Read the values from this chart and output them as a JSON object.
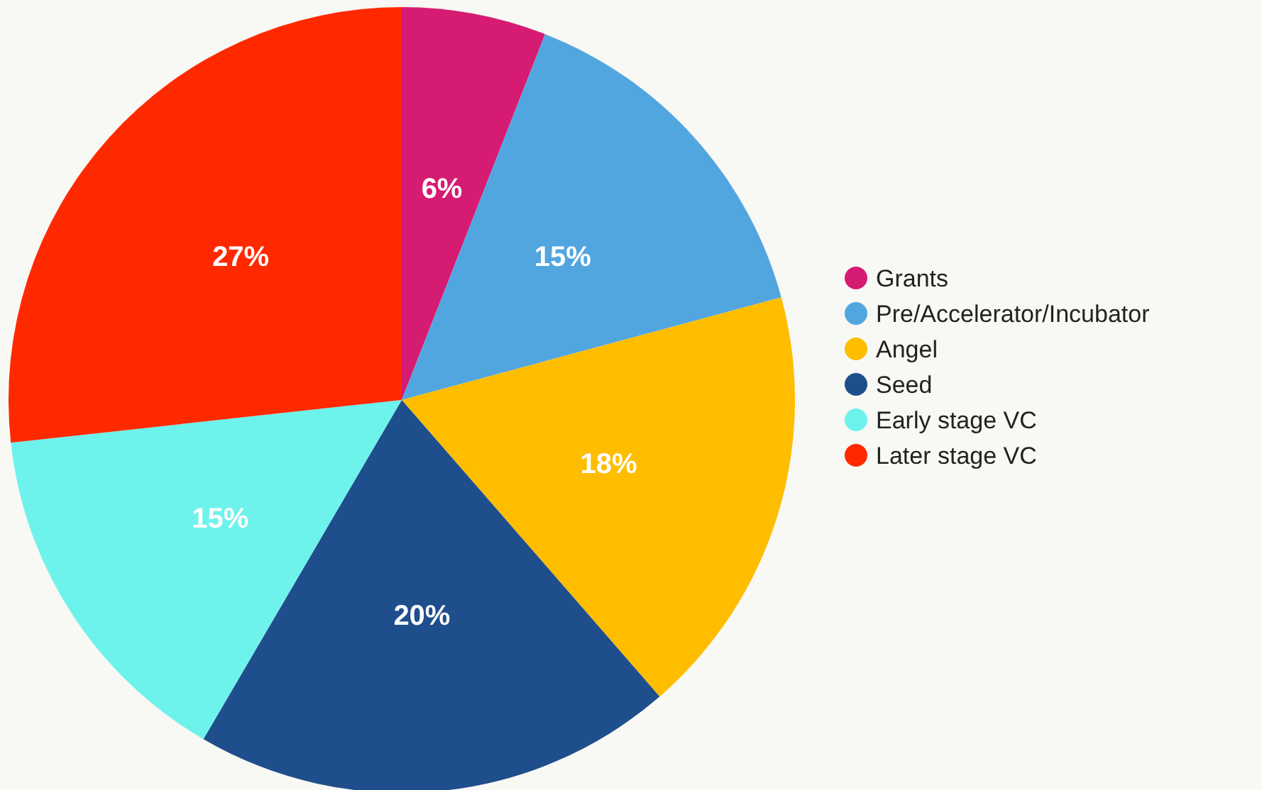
{
  "chart_data": {
    "type": "pie",
    "categories": [
      "Grants",
      "Pre/Accelerator/Incubator",
      "Angel",
      "Seed",
      "Early stage VC",
      "Later stage VC"
    ],
    "values": [
      6,
      15,
      18,
      20,
      15,
      27
    ],
    "colors": [
      "#d61b73",
      "#52a6e0",
      "#ffbd00",
      "#1f4e8c",
      "#6ef2ec",
      "#ff2900"
    ],
    "value_labels": [
      "6%",
      "15%",
      "18%",
      "20%",
      "15%",
      "27%"
    ],
    "legend": "right"
  }
}
